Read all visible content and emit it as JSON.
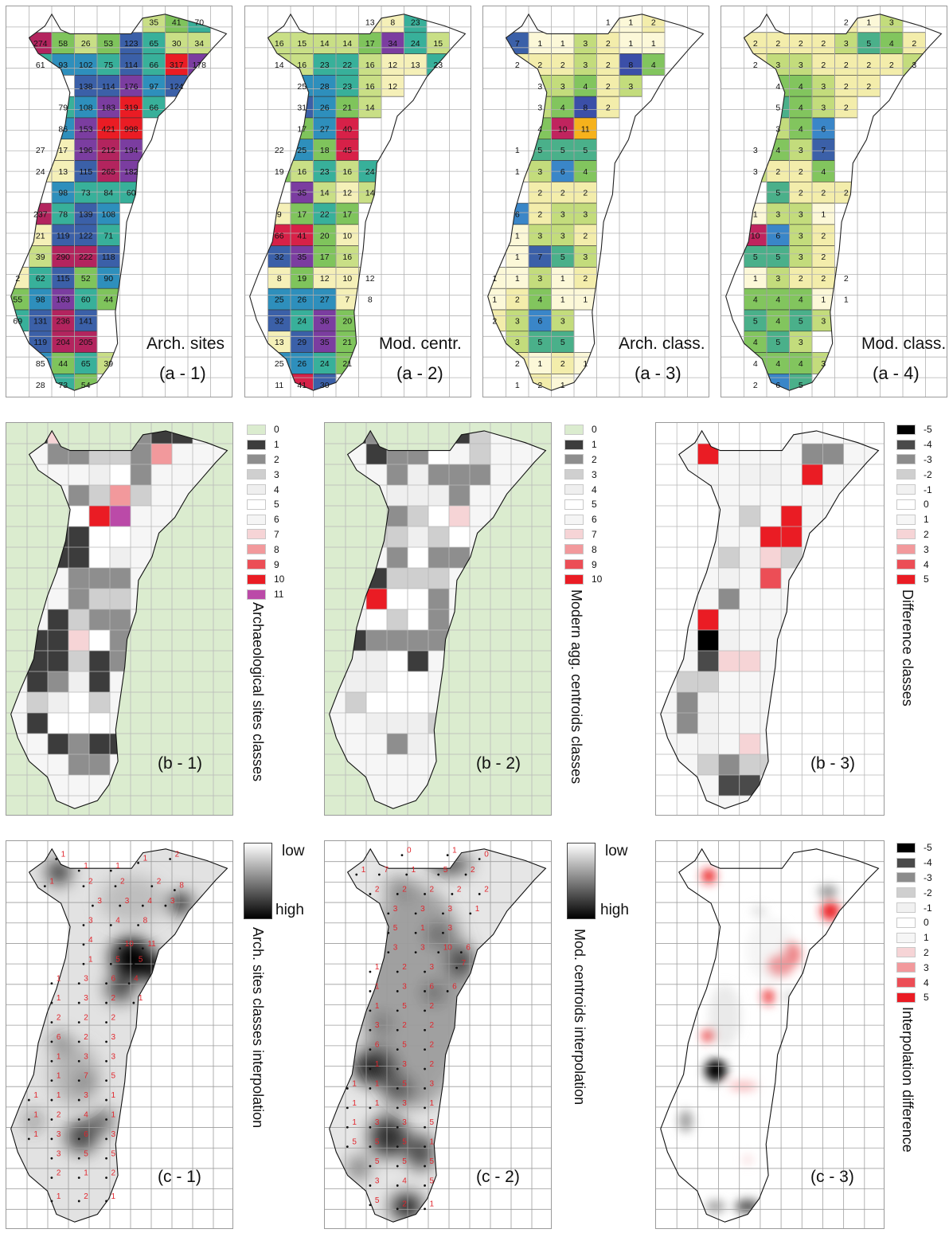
{
  "row_a": {
    "panels": [
      {
        "id": "a1",
        "label": "Arch. sites",
        "caption": "(a - 1)"
      },
      {
        "id": "a2",
        "label": "Mod. centr.",
        "caption": "(a - 2)"
      },
      {
        "id": "a3",
        "label": "Arch. class.",
        "caption": "(a - 3)"
      },
      {
        "id": "a4",
        "label": "Mod. class.",
        "caption": "(a - 4)"
      }
    ],
    "cell_values": {
      "a1": [
        [
          "",
          "",
          "",
          "",
          "",
          "",
          "35",
          "41",
          "70",
          ""
        ],
        [
          "",
          "274",
          "58",
          "26",
          "53",
          "123",
          "65",
          "30",
          "34",
          ""
        ],
        [
          "",
          "61",
          "93",
          "102",
          "75",
          "114",
          "66",
          "317",
          "178",
          ""
        ],
        [
          "",
          "",
          "",
          "138",
          "114",
          "176",
          "97",
          "124",
          "",
          ""
        ],
        [
          "",
          "",
          "79",
          "108",
          "183",
          "319",
          "66",
          "",
          "",
          ""
        ],
        [
          "",
          "",
          "86",
          "153",
          "421",
          "998",
          "",
          "",
          "",
          ""
        ],
        [
          "",
          "27",
          "17",
          "196",
          "212",
          "194",
          "",
          "",
          "",
          ""
        ],
        [
          "",
          "24",
          "13",
          "115",
          "265",
          "182",
          "",
          "",
          "",
          ""
        ],
        [
          "",
          "",
          "98",
          "73",
          "84",
          "60",
          "",
          "",
          "",
          ""
        ],
        [
          "",
          "237",
          "78",
          "139",
          "108",
          "",
          "",
          "",
          "",
          ""
        ],
        [
          "",
          "21",
          "119",
          "122",
          "71",
          "",
          "",
          "",
          "",
          ""
        ],
        [
          "",
          "39",
          "290",
          "222",
          "118",
          "",
          "",
          "",
          "",
          ""
        ],
        [
          "2",
          "62",
          "115",
          "52",
          "90",
          "",
          "",
          "",
          "",
          ""
        ],
        [
          "55",
          "98",
          "163",
          "60",
          "44",
          "",
          "",
          "",
          "",
          ""
        ],
        [
          "69",
          "131",
          "236",
          "141",
          "",
          "",
          "",
          "",
          "",
          ""
        ],
        [
          "",
          "119",
          "204",
          "205",
          "",
          "",
          "",
          "",
          "",
          ""
        ],
        [
          "",
          "85",
          "44",
          "65",
          "39",
          "",
          "",
          "",
          "",
          ""
        ],
        [
          "",
          "28",
          "73",
          "54",
          "",
          "",
          "",
          "",
          "",
          ""
        ]
      ],
      "a2": [
        [
          "",
          "",
          "",
          "",
          "",
          "13",
          "8",
          "23",
          "",
          ""
        ],
        [
          "",
          "16",
          "15",
          "14",
          "14",
          "17",
          "34",
          "24",
          "15",
          ""
        ],
        [
          "",
          "14",
          "16",
          "23",
          "22",
          "16",
          "12",
          "13",
          "23",
          ""
        ],
        [
          "",
          "",
          "25",
          "28",
          "23",
          "16",
          "12",
          "",
          "",
          ""
        ],
        [
          "",
          "",
          "31",
          "26",
          "21",
          "14",
          "",
          "",
          "",
          ""
        ],
        [
          "",
          "",
          "17",
          "27",
          "40",
          "",
          "",
          "",
          "",
          ""
        ],
        [
          "",
          "22",
          "25",
          "18",
          "45",
          "",
          "",
          "",
          "",
          ""
        ],
        [
          "",
          "19",
          "16",
          "23",
          "16",
          "24",
          "",
          "",
          "",
          ""
        ],
        [
          "",
          "",
          "35",
          "14",
          "12",
          "14",
          "",
          "",
          "",
          ""
        ],
        [
          "",
          "9",
          "17",
          "22",
          "17",
          "",
          "",
          "",
          "",
          ""
        ],
        [
          "",
          "66",
          "41",
          "20",
          "10",
          "",
          "",
          "",
          "",
          ""
        ],
        [
          "",
          "32",
          "35",
          "17",
          "16",
          "",
          "",
          "",
          "",
          ""
        ],
        [
          "",
          "8",
          "19",
          "12",
          "10",
          "12",
          "",
          "",
          "",
          ""
        ],
        [
          "",
          "25",
          "26",
          "27",
          "7",
          "8",
          "",
          "",
          "",
          ""
        ],
        [
          "",
          "32",
          "24",
          "36",
          "20",
          "",
          "",
          "",
          "",
          ""
        ],
        [
          "",
          "13",
          "29",
          "35",
          "21",
          "",
          "",
          "",
          "",
          ""
        ],
        [
          "",
          "25",
          "26",
          "24",
          "21",
          "",
          "",
          "",
          "",
          ""
        ],
        [
          "",
          "11",
          "41",
          "30",
          "",
          "",
          "",
          "",
          "",
          ""
        ]
      ],
      "a3": [
        [
          "",
          "",
          "",
          "",
          "",
          "1",
          "1",
          "2",
          "",
          ""
        ],
        [
          "",
          "7",
          "1",
          "1",
          "3",
          "2",
          "1",
          "1",
          "",
          ""
        ],
        [
          "",
          "2",
          "2",
          "2",
          "3",
          "2",
          "8",
          "4",
          "",
          ""
        ],
        [
          "",
          "",
          "3",
          "3",
          "4",
          "2",
          "3",
          "",
          "",
          ""
        ],
        [
          "",
          "",
          "3",
          "4",
          "8",
          "2",
          "",
          "",
          "",
          ""
        ],
        [
          "",
          "",
          "4",
          "10",
          "11",
          "",
          "",
          "",
          "",
          ""
        ],
        [
          "",
          "1",
          "5",
          "5",
          "5",
          "",
          "",
          "",
          "",
          ""
        ],
        [
          "",
          "1",
          "3",
          "6",
          "4",
          "",
          "",
          "",
          "",
          ""
        ],
        [
          "",
          "",
          "2",
          "2",
          "2",
          "",
          "",
          "",
          "",
          ""
        ],
        [
          "",
          "6",
          "2",
          "3",
          "3",
          "",
          "",
          "",
          "",
          ""
        ],
        [
          "",
          "1",
          "3",
          "3",
          "2",
          "",
          "",
          "",
          "",
          ""
        ],
        [
          "",
          "1",
          "7",
          "5",
          "3",
          "",
          "",
          "",
          "",
          ""
        ],
        [
          "1",
          "1",
          "3",
          "1",
          "2",
          "",
          "",
          "",
          "",
          ""
        ],
        [
          "1",
          "2",
          "4",
          "1",
          "1",
          "",
          "",
          "",
          "",
          ""
        ],
        [
          "2",
          "3",
          "6",
          "3",
          "",
          "",
          "",
          "",
          "",
          ""
        ],
        [
          "",
          "3",
          "5",
          "5",
          "",
          "",
          "",
          "",
          "",
          ""
        ],
        [
          "",
          "2",
          "1",
          "2",
          "1",
          "",
          "",
          "",
          "",
          ""
        ],
        [
          "",
          "1",
          "2",
          "1",
          "",
          "",
          "",
          "",
          "",
          ""
        ]
      ],
      "a4": [
        [
          "",
          "",
          "",
          "",
          "",
          "2",
          "1",
          "3",
          "",
          ""
        ],
        [
          "",
          "2",
          "2",
          "2",
          "2",
          "3",
          "5",
          "4",
          "2",
          ""
        ],
        [
          "",
          "2",
          "3",
          "3",
          "2",
          "2",
          "2",
          "2",
          "3",
          ""
        ],
        [
          "",
          "",
          "4",
          "4",
          "3",
          "2",
          "2",
          "",
          "",
          ""
        ],
        [
          "",
          "",
          "5",
          "4",
          "3",
          "2",
          "",
          "",
          "",
          ""
        ],
        [
          "",
          "",
          "3",
          "4",
          "6",
          "",
          "",
          "",
          "",
          ""
        ],
        [
          "",
          "3",
          "4",
          "3",
          "7",
          "",
          "",
          "",
          "",
          ""
        ],
        [
          "",
          "3",
          "2",
          "2",
          "4",
          "",
          "",
          "",
          "",
          ""
        ],
        [
          "",
          "",
          "5",
          "2",
          "2",
          "2",
          "",
          "",
          "",
          ""
        ],
        [
          "",
          "1",
          "3",
          "3",
          "1",
          "",
          "",
          "",
          "",
          ""
        ],
        [
          "",
          "10",
          "6",
          "3",
          "2",
          "",
          "",
          "",
          "",
          ""
        ],
        [
          "",
          "5",
          "5",
          "3",
          "2",
          "",
          "",
          "",
          "",
          ""
        ],
        [
          "",
          "1",
          "3",
          "2",
          "2",
          "2",
          "",
          "",
          "",
          ""
        ],
        [
          "",
          "4",
          "4",
          "4",
          "1",
          "1",
          "",
          "",
          "",
          ""
        ],
        [
          "",
          "5",
          "4",
          "5",
          "3",
          "",
          "",
          "",
          "",
          ""
        ],
        [
          "",
          "4",
          "5",
          "3",
          "",
          "",
          "",
          "",
          "",
          ""
        ],
        [
          "",
          "4",
          "4",
          "4",
          "3",
          "",
          "",
          "",
          "",
          ""
        ],
        [
          "",
          "2",
          "6",
          "5",
          "",
          "",
          "",
          "",
          "",
          ""
        ]
      ]
    }
  },
  "row_b": {
    "panels": [
      {
        "id": "b1",
        "caption": "(b - 1)",
        "legend_title": "Archaeological sites classes"
      },
      {
        "id": "b2",
        "caption": "(b - 2)",
        "legend_title": "Modern agg. centroids classes"
      },
      {
        "id": "b3",
        "caption": "(b - 3)",
        "legend_title": "Difference classes"
      }
    ],
    "legend_b1": [
      {
        "label": "0",
        "color": "#dbeccf"
      },
      {
        "label": "1",
        "color": "#3c3c3c"
      },
      {
        "label": "2",
        "color": "#8e8e8e"
      },
      {
        "label": "3",
        "color": "#cfcfcf"
      },
      {
        "label": "4",
        "color": "#efefef"
      },
      {
        "label": "5",
        "color": "#ffffff"
      },
      {
        "label": "6",
        "color": "#f5f5f5"
      },
      {
        "label": "7",
        "color": "#f6d4d6"
      },
      {
        "label": "8",
        "color": "#f2999c"
      },
      {
        "label": "9",
        "color": "#ec4e56"
      },
      {
        "label": "10",
        "color": "#ea1c24"
      },
      {
        "label": "11",
        "color": "#bb4aa8"
      }
    ],
    "legend_b2": [
      {
        "label": "0",
        "color": "#dbeccf"
      },
      {
        "label": "1",
        "color": "#3c3c3c"
      },
      {
        "label": "2",
        "color": "#8e8e8e"
      },
      {
        "label": "3",
        "color": "#cfcfcf"
      },
      {
        "label": "4",
        "color": "#efefef"
      },
      {
        "label": "5",
        "color": "#ffffff"
      },
      {
        "label": "6",
        "color": "#f5f5f5"
      },
      {
        "label": "7",
        "color": "#f6d4d6"
      },
      {
        "label": "8",
        "color": "#f2999c"
      },
      {
        "label": "9",
        "color": "#ec4e56"
      },
      {
        "label": "10",
        "color": "#ea1c24"
      }
    ],
    "legend_b3": [
      {
        "label": "-5",
        "color": "#000000"
      },
      {
        "label": "-4",
        "color": "#4a4a4a"
      },
      {
        "label": "-3",
        "color": "#8c8c8c"
      },
      {
        "label": "-2",
        "color": "#cfcfcf"
      },
      {
        "label": "-1",
        "color": "#f1f1f1"
      },
      {
        "label": "0",
        "color": "#ffffff"
      },
      {
        "label": "1",
        "color": "#f6f6f6"
      },
      {
        "label": "2",
        "color": "#f6d4d6"
      },
      {
        "label": "3",
        "color": "#f2999c"
      },
      {
        "label": "4",
        "color": "#ec4e56"
      },
      {
        "label": "5",
        "color": "#ea1c24"
      }
    ]
  },
  "row_c": {
    "panels": [
      {
        "id": "c1",
        "caption": "(c - 1)",
        "legend_title": "Arch. sites classes interpolation"
      },
      {
        "id": "c2",
        "caption": "(c - 2)",
        "legend_title": "Mod. centroids interpolation"
      },
      {
        "id": "c3",
        "caption": "(c - 3)",
        "legend_title": "Interpolation difference"
      }
    ],
    "ramp": {
      "low": "low",
      "high": "high"
    },
    "legend_c3": [
      {
        "label": "-5",
        "color": "#000000"
      },
      {
        "label": "-4",
        "color": "#4a4a4a"
      },
      {
        "label": "-3",
        "color": "#8c8c8c"
      },
      {
        "label": "-2",
        "color": "#cfcfcf"
      },
      {
        "label": "-1",
        "color": "#f1f1f1"
      },
      {
        "label": "0",
        "color": "#ffffff"
      },
      {
        "label": "1",
        "color": "#f6f6f6"
      },
      {
        "label": "2",
        "color": "#f6d4d6"
      },
      {
        "label": "3",
        "color": "#f2999c"
      },
      {
        "label": "4",
        "color": "#ec4e56"
      },
      {
        "label": "5",
        "color": "#ea1c24"
      }
    ]
  }
}
